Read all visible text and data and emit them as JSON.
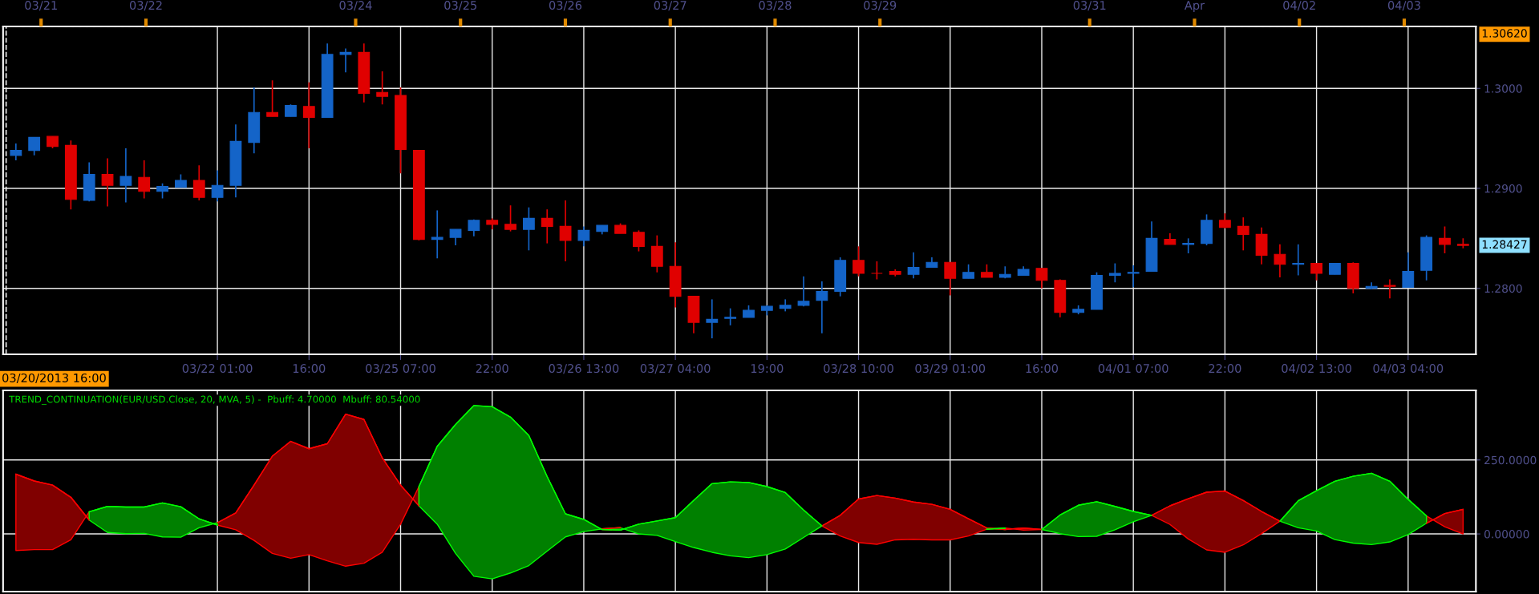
{
  "chart_data": [
    {
      "type": "candlestick",
      "categories": [
        null,
        null,
        null,
        null,
        null,
        null,
        null,
        null,
        null,
        null,
        null,
        "03/22 01:00",
        null,
        null,
        null,
        null,
        "16:00",
        null,
        null,
        null,
        null,
        "03/25 07:00",
        null,
        null,
        null,
        null,
        "22:00",
        null,
        null,
        null,
        null,
        "03/26 13:00",
        null,
        null,
        null,
        null,
        "03/27 04:00",
        null,
        null,
        null,
        null,
        "19:00",
        null,
        null,
        null,
        null,
        "03/28 10:00",
        null,
        null,
        null,
        null,
        "03/29 01:00",
        null,
        null,
        null,
        null,
        "16:00",
        null,
        null,
        null,
        null,
        "04/01 07:00",
        null,
        null,
        null,
        null,
        "22:00",
        null,
        null,
        null,
        null,
        "04/02 13:00",
        null,
        null,
        null,
        null,
        "04/03 04:00",
        null,
        null,
        null
      ],
      "ohlc": [
        [
          1.2933,
          1.2945,
          1.2928,
          1.2938
        ],
        [
          1.2938,
          1.2951,
          1.2933,
          1.2951
        ],
        [
          1.2952,
          1.2952,
          1.294,
          1.2942
        ],
        [
          1.2943,
          1.2948,
          1.2879,
          1.2889
        ],
        [
          1.2888,
          1.2926,
          1.2887,
          1.2914
        ],
        [
          1.2914,
          1.293,
          1.2882,
          1.2903
        ],
        [
          1.2903,
          1.294,
          1.2886,
          1.2912
        ],
        [
          1.2911,
          1.2928,
          1.289,
          1.2897
        ],
        [
          1.2897,
          1.2905,
          1.289,
          1.2902
        ],
        [
          1.2901,
          1.2914,
          1.2901,
          1.2908
        ],
        [
          1.2908,
          1.2923,
          1.2888,
          1.2891
        ],
        [
          1.2891,
          1.2918,
          1.2887,
          1.2903
        ],
        [
          1.2903,
          1.2964,
          1.2891,
          1.2947
        ],
        [
          1.2946,
          1.3001,
          1.2935,
          1.2976
        ],
        [
          1.2976,
          1.3008,
          1.2972,
          1.2972
        ],
        [
          1.2972,
          1.2984,
          1.2972,
          1.2983
        ],
        [
          1.2982,
          1.3006,
          1.294,
          1.2971
        ],
        [
          1.2971,
          1.3045,
          1.2971,
          1.3034
        ],
        [
          1.3034,
          1.304,
          1.3016,
          1.3036
        ],
        [
          1.3036,
          1.3045,
          1.2986,
          1.2995
        ],
        [
          1.2996,
          1.3017,
          1.2984,
          1.2992
        ],
        [
          1.2993,
          1.3001,
          1.2915,
          1.2939
        ],
        [
          1.2938,
          1.2938,
          1.2848,
          1.2849
        ],
        [
          1.2849,
          1.2878,
          1.283,
          1.2851
        ],
        [
          1.2851,
          1.2859,
          1.2843,
          1.2859
        ],
        [
          1.2858,
          1.2869,
          1.2852,
          1.2868
        ],
        [
          1.2868,
          1.287,
          1.2859,
          1.2864
        ],
        [
          1.2864,
          1.2883,
          1.2857,
          1.2859
        ],
        [
          1.2859,
          1.2881,
          1.2838,
          1.287
        ],
        [
          1.287,
          1.2879,
          1.2845,
          1.2862
        ],
        [
          1.2862,
          1.2888,
          1.2827,
          1.2848
        ],
        [
          1.2848,
          1.2862,
          1.2842,
          1.2858
        ],
        [
          1.2857,
          1.2863,
          1.2854,
          1.2863
        ],
        [
          1.2863,
          1.2865,
          1.2855,
          1.2855
        ],
        [
          1.2856,
          1.2858,
          1.2837,
          1.2842
        ],
        [
          1.2842,
          1.2853,
          1.2816,
          1.2822
        ],
        [
          1.2822,
          1.2846,
          1.2781,
          1.2792
        ],
        [
          1.2792,
          1.2792,
          1.2755,
          1.2766
        ],
        [
          1.2766,
          1.2789,
          1.275,
          1.2769
        ],
        [
          1.277,
          1.278,
          1.2763,
          1.2771
        ],
        [
          1.2771,
          1.2783,
          1.2771,
          1.2778
        ],
        [
          1.2778,
          1.2783,
          1.2773,
          1.2782
        ],
        [
          1.278,
          1.2789,
          1.2777,
          1.2783
        ],
        [
          1.2783,
          1.2812,
          1.2782,
          1.2787
        ],
        [
          1.2788,
          1.2807,
          1.2755,
          1.2797
        ],
        [
          1.2797,
          1.2831,
          1.2792,
          1.2828
        ],
        [
          1.2828,
          1.2842,
          1.2812,
          1.2815
        ],
        [
          1.2815,
          1.2827,
          1.2809,
          1.2815
        ],
        [
          1.2817,
          1.2819,
          1.2812,
          1.2814
        ],
        [
          1.2814,
          1.2836,
          1.281,
          1.2821
        ],
        [
          1.2821,
          1.2831,
          1.2821,
          1.2826
        ],
        [
          1.2826,
          1.2826,
          1.2793,
          1.281
        ],
        [
          1.281,
          1.2824,
          1.281,
          1.2816
        ],
        [
          1.2816,
          1.2824,
          1.2811,
          1.2811
        ],
        [
          1.2811,
          1.2822,
          1.281,
          1.2814
        ],
        [
          1.2813,
          1.2822,
          1.2813,
          1.2819
        ],
        [
          1.282,
          1.282,
          1.28,
          1.2808
        ],
        [
          1.2808,
          1.2809,
          1.2771,
          1.2776
        ],
        [
          1.2776,
          1.2783,
          1.2774,
          1.2779
        ],
        [
          1.2779,
          1.2816,
          1.2779,
          1.2813
        ],
        [
          1.2813,
          1.2825,
          1.2806,
          1.2815
        ],
        [
          1.2815,
          1.2823,
          1.2801,
          1.2816
        ],
        [
          1.2817,
          1.2867,
          1.2817,
          1.285
        ],
        [
          1.2849,
          1.2855,
          1.2844,
          1.2844
        ],
        [
          1.2844,
          1.285,
          1.2835,
          1.2845
        ],
        [
          1.2845,
          1.2874,
          1.2843,
          1.2868
        ],
        [
          1.2868,
          1.2875,
          1.286,
          1.2861
        ],
        [
          1.2862,
          1.2871,
          1.2838,
          1.2854
        ],
        [
          1.2854,
          1.2861,
          1.2824,
          1.2833
        ],
        [
          1.2834,
          1.2844,
          1.2811,
          1.2824
        ],
        [
          1.2824,
          1.2844,
          1.2813,
          1.2825
        ],
        [
          1.2825,
          1.2825,
          1.2808,
          1.2815
        ],
        [
          1.2814,
          1.2825,
          1.2814,
          1.2825
        ],
        [
          1.2825,
          1.2826,
          1.2795,
          1.28
        ],
        [
          1.28,
          1.2806,
          1.2799,
          1.2802
        ],
        [
          1.2803,
          1.2809,
          1.279,
          1.2802
        ],
        [
          1.2801,
          1.2836,
          1.2801,
          1.2817
        ],
        [
          1.2818,
          1.2853,
          1.2808,
          1.2851
        ],
        [
          1.285,
          1.2862,
          1.2835,
          1.2844
        ],
        [
          1.2844,
          1.285,
          1.284,
          1.2843
        ]
      ],
      "colors": [
        "#1464c8",
        "#1464c8",
        "#e00000",
        "#e00000",
        "#1464c8",
        "#e00000",
        "#1464c8",
        "#e00000",
        "#1464c8",
        "#1464c8",
        "#e00000",
        "#1464c8",
        "#1464c8",
        "#1464c8",
        "#e00000",
        "#1464c8",
        "#e00000",
        "#1464c8",
        "#1464c8",
        "#e00000",
        "#e00000",
        "#e00000",
        "#e00000",
        "#1464c8",
        "#1464c8",
        "#1464c8",
        "#e00000",
        "#e00000",
        "#1464c8",
        "#e00000",
        "#e00000",
        "#1464c8",
        "#1464c8",
        "#e00000",
        "#e00000",
        "#e00000",
        "#e00000",
        "#e00000",
        "#1464c8",
        "#1464c8",
        "#1464c8",
        "#1464c8",
        "#1464c8",
        "#1464c8",
        "#1464c8",
        "#1464c8",
        "#e00000",
        "#e00000",
        "#e00000",
        "#1464c8",
        "#1464c8",
        "#e00000",
        "#1464c8",
        "#e00000",
        "#1464c8",
        "#1464c8",
        "#e00000",
        "#e00000",
        "#1464c8",
        "#1464c8",
        "#1464c8",
        "#1464c8",
        "#1464c8",
        "#e00000",
        "#1464c8",
        "#1464c8",
        "#e00000",
        "#e00000",
        "#e00000",
        "#e00000",
        "#1464c8",
        "#e00000",
        "#1464c8",
        "#e00000",
        "#1464c8",
        "#e00000",
        "#1464c8",
        "#1464c8",
        "#e00000",
        "#e00000"
      ],
      "x2lim": [
        "2013-03-20T15:18",
        "2013-04-03T16:24"
      ],
      "x2ticks": [
        {
          "value": "2013-03-21",
          "label": "03/21"
        },
        {
          "value": "2013-03-22",
          "label": "03/22"
        },
        {
          "value": "2013-03-24",
          "label": "03/24"
        },
        {
          "value": "2013-03-25",
          "label": "03/25"
        },
        {
          "value": "2013-03-26",
          "label": "03/26"
        },
        {
          "value": "2013-03-27",
          "label": "03/27"
        },
        {
          "value": "2013-03-28",
          "label": "03/28"
        },
        {
          "value": "2013-03-29",
          "label": "03/29"
        },
        {
          "value": "2013-03-31",
          "label": "03/31"
        },
        {
          "value": "2013-04-01",
          "label": "Apr"
        },
        {
          "value": "2013-04-02",
          "label": "04/02"
        },
        {
          "value": "2013-04-03",
          "label": "04/03"
        }
      ],
      "ylim": [
        1.2734,
        1.3062
      ],
      "yticks": [
        {
          "value": 1.28,
          "label": "1.2800"
        },
        {
          "value": 1.29,
          "label": "1.2900"
        },
        {
          "value": 1.3,
          "label": "1.3000"
        }
      ],
      "grid": true,
      "ref_lines": [
        {
          "axis": "y",
          "value": 1.3062,
          "label": "1.30620",
          "line_style": "dashed"
        },
        {
          "axis": "x2",
          "value": "2013-03-20T16:00",
          "label": "03/20/2013 16:00",
          "line_style": "dashed"
        }
      ],
      "annotations": [
        "1.28427"
      ]
    },
    {
      "type": "line",
      "title": "TREND_CONTINUATION(EUR/USD.Close, 20, MVA, 5) -  Pbuff: 4.70000  Mbuff: 80.54000",
      "categories": [
        null,
        null,
        null,
        null,
        null,
        null,
        null,
        null,
        null,
        null,
        null,
        null,
        null,
        null,
        null,
        null,
        null,
        null,
        null,
        null,
        null,
        null,
        null,
        null,
        null,
        null,
        null,
        null,
        null,
        null,
        null,
        null,
        null,
        null,
        null,
        null,
        null,
        null,
        null,
        null,
        null,
        null,
        null,
        null,
        null,
        null,
        null,
        null,
        null,
        null,
        null,
        null,
        null,
        null,
        null,
        null,
        null,
        null,
        null,
        null,
        null,
        null,
        null,
        null,
        null,
        null,
        null,
        null,
        null,
        null,
        null,
        null,
        null,
        null,
        null,
        null,
        null,
        null,
        null,
        null
      ],
      "series": [
        {
          "color": "#ff0000",
          "values": [
            202,
            179,
            165,
            124,
            47,
            null,
            null,
            null,
            null,
            null,
            null,
            38,
            71,
            165,
            263,
            313,
            288,
            305,
            405,
            387,
            257,
            165,
            95,
            null,
            null,
            null,
            null,
            null,
            null,
            null,
            null,
            null,
            17,
            21,
            null,
            null,
            null,
            null,
            null,
            null,
            null,
            null,
            null,
            null,
            27,
            63,
            118,
            130,
            121,
            108,
            100,
            83,
            51,
            20,
            15,
            20,
            15,
            null,
            null,
            null,
            null,
            null,
            63,
            95,
            119,
            141,
            145,
            113,
            76,
            43,
            null,
            null,
            null,
            null,
            null,
            null,
            null,
            36,
            69,
            83
          ],
          "upper": [
            202,
            179,
            165,
            124,
            47,
            null,
            null,
            null,
            null,
            null,
            null,
            38,
            71,
            165,
            263,
            313,
            288,
            305,
            405,
            387,
            257,
            165,
            95,
            null,
            null,
            null,
            null,
            null,
            null,
            null,
            null,
            null,
            17,
            21,
            null,
            null,
            null,
            null,
            null,
            null,
            null,
            null,
            null,
            null,
            27,
            63,
            118,
            130,
            121,
            108,
            100,
            83,
            51,
            20,
            15,
            20,
            15,
            null,
            null,
            null,
            null,
            null,
            63,
            95,
            119,
            141,
            145,
            113,
            76,
            43,
            null,
            null,
            null,
            null,
            null,
            null,
            null,
            36,
            69,
            83
          ],
          "lower": [
            -56,
            -53,
            -53,
            -20,
            75,
            null,
            null,
            null,
            null,
            null,
            null,
            30,
            14,
            -22,
            -66,
            -82,
            -70,
            -91,
            -109,
            -99,
            -62,
            33,
            160,
            null,
            null,
            null,
            null,
            null,
            null,
            null,
            null,
            null,
            15,
            13,
            null,
            null,
            null,
            null,
            null,
            null,
            null,
            null,
            null,
            null,
            27,
            -7,
            -29,
            -35,
            -20,
            -18,
            -20,
            -20,
            -7,
            16,
            20,
            13,
            15,
            null,
            null,
            null,
            null,
            null,
            63,
            32,
            -17,
            -54,
            -62,
            -37,
            1,
            43,
            null,
            null,
            null,
            null,
            null,
            null,
            null,
            61,
            24,
            0
          ]
        },
        {
          "color": "#00ff00",
          "values": [
            null,
            null,
            null,
            null,
            75,
            93,
            91,
            91,
            105,
            92,
            51,
            30,
            null,
            null,
            null,
            null,
            null,
            null,
            null,
            null,
            null,
            null,
            160,
            296,
            370,
            434,
            430,
            395,
            333,
            194,
            68,
            49,
            15,
            13,
            33,
            44,
            55,
            113,
            170,
            176,
            174,
            160,
            140,
            81,
            27,
            null,
            null,
            null,
            null,
            null,
            null,
            null,
            null,
            16,
            20,
            null,
            15,
            64,
            97,
            109,
            93,
            76,
            63,
            null,
            null,
            null,
            null,
            null,
            null,
            43,
            112,
            146,
            178,
            195,
            205,
            178,
            117,
            61,
            null,
            null
          ],
          "upper": [
            null,
            null,
            null,
            null,
            75,
            93,
            91,
            91,
            105,
            92,
            51,
            30,
            null,
            null,
            null,
            null,
            null,
            null,
            null,
            null,
            null,
            null,
            160,
            296,
            370,
            434,
            430,
            395,
            333,
            194,
            68,
            49,
            15,
            13,
            33,
            44,
            55,
            113,
            170,
            176,
            174,
            160,
            140,
            81,
            27,
            null,
            null,
            null,
            null,
            null,
            null,
            null,
            null,
            16,
            20,
            null,
            15,
            64,
            97,
            109,
            93,
            76,
            63,
            null,
            null,
            null,
            null,
            null,
            null,
            43,
            112,
            146,
            178,
            195,
            205,
            178,
            117,
            61,
            null,
            null
          ],
          "lower": [
            null,
            null,
            null,
            null,
            47,
            5,
            1,
            2,
            -10,
            -11,
            21,
            38,
            null,
            null,
            null,
            null,
            null,
            null,
            null,
            null,
            null,
            null,
            95,
            33,
            -66,
            -143,
            -152,
            -132,
            -107,
            -58,
            -10,
            8,
            17,
            21,
            0,
            -5,
            -26,
            -46,
            -62,
            -74,
            -80,
            -70,
            -51,
            -12,
            27,
            null,
            null,
            null,
            null,
            null,
            null,
            null,
            null,
            20,
            15,
            null,
            15,
            1,
            -9,
            -8,
            14,
            41,
            63,
            null,
            null,
            null,
            null,
            null,
            null,
            43,
            21,
            10,
            -19,
            -31,
            -36,
            -27,
            -2,
            36,
            null,
            null
          ]
        }
      ],
      "ylim": [
        -195,
        485
      ],
      "yticks": [
        {
          "value": 0,
          "label": "0.00000"
        },
        {
          "value": 250,
          "label": "250.0000"
        }
      ],
      "grid": true,
      "tick_labels": "y"
    }
  ]
}
